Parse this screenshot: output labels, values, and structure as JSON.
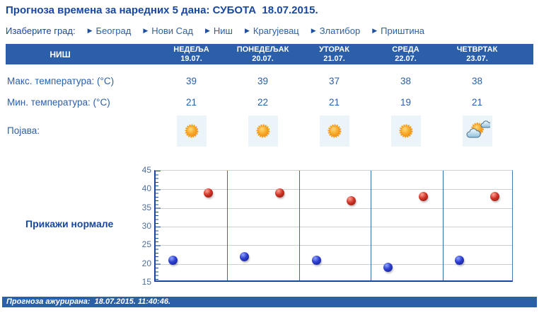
{
  "page": {
    "title": "Прогноза времена за наредних 5 дана: СУБОТА  18.07.2015.",
    "footer": "Прогноза ажурирана:  18.07.2015. 11:40:46."
  },
  "city_selector": {
    "label": "Изаберите град:",
    "arrow": "▶",
    "cities": [
      "Београд",
      "Нови Сад",
      "Ниш",
      "Крагујевац",
      "Златибор",
      "Приштина"
    ]
  },
  "table": {
    "city": "НИШ",
    "row_labels": {
      "max": "Макс. температура: (°C)",
      "min": "Мин. температура: (°C)",
      "phenomenon": "Појава:"
    },
    "days": [
      {
        "name": "НЕДЕЉА",
        "date": "19.07.",
        "max": "39",
        "min": "21",
        "icon": "sunny"
      },
      {
        "name": "ПОНЕДЕЉАК",
        "date": "20.07.",
        "max": "39",
        "min": "22",
        "icon": "sunny"
      },
      {
        "name": "УТОРАК",
        "date": "21.07.",
        "max": "37",
        "min": "21",
        "icon": "sunny"
      },
      {
        "name": "СРЕДА",
        "date": "22.07.",
        "max": "38",
        "min": "19",
        "icon": "sunny"
      },
      {
        "name": "ЧЕТВРТАК",
        "date": "23.07.",
        "max": "38",
        "min": "21",
        "icon": "partly-cloudy"
      }
    ]
  },
  "show_normals_label": "Прикажи нормале",
  "chart_data": {
    "type": "scatter",
    "categories": [
      "НЕДЕЉА 19.07.",
      "ПОНЕДЕЉАК 20.07.",
      "УТОРАК 21.07.",
      "СРЕДА 22.07.",
      "ЧЕТВРТАК 23.07."
    ],
    "series": [
      {
        "name": "Макс. температура (°C)",
        "color": "#d23428",
        "values": [
          39,
          39,
          37,
          38,
          38
        ]
      },
      {
        "name": "Мин. температура (°C)",
        "color": "#2c3ecf",
        "values": [
          21,
          22,
          21,
          19,
          21
        ]
      }
    ],
    "ylim": [
      15,
      45
    ],
    "yticks": [
      15,
      20,
      25,
      30,
      35,
      40,
      45
    ],
    "grid": true,
    "legend": "none"
  },
  "colors": {
    "header_bar": "#2b5fa9",
    "title_text": "#17479e",
    "link_text": "#2a60a8",
    "max_point": "#d23428",
    "min_point": "#2c3ecf",
    "icon_tile_bg": "#eaf4f9"
  }
}
